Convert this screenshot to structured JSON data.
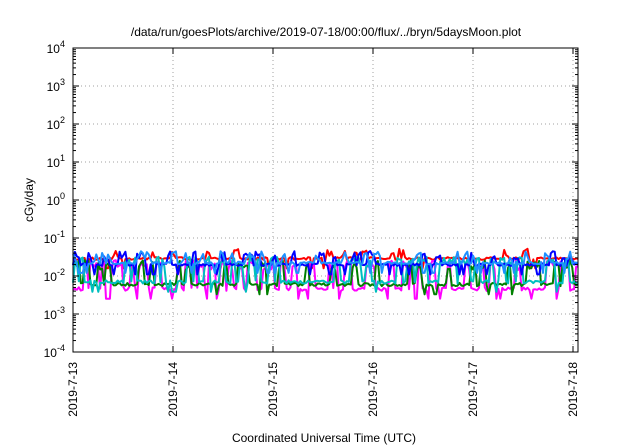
{
  "chart_data": {
    "type": "line",
    "title": "/data/run/goesPlots/archive/2019-07-18/00:00/flux/../bryn/5daysMoon.plot",
    "xlabel": "Coordinated Universal Time (UTC)",
    "ylabel": "cGy/day",
    "y_scale": "log",
    "ylim": [
      0.0001,
      10000
    ],
    "y_ticks": [
      {
        "value": 0.0001,
        "base": "10",
        "exp": "-4"
      },
      {
        "value": 0.001,
        "base": "10",
        "exp": "-3"
      },
      {
        "value": 0.01,
        "base": "10",
        "exp": "-2"
      },
      {
        "value": 0.1,
        "base": "10",
        "exp": "-1"
      },
      {
        "value": 1,
        "base": "10",
        "exp": "0"
      },
      {
        "value": 10,
        "base": "10",
        "exp": "1"
      },
      {
        "value": 100,
        "base": "10",
        "exp": "2"
      },
      {
        "value": 1000,
        "base": "10",
        "exp": "3"
      },
      {
        "value": 10000,
        "base": "10",
        "exp": "4"
      }
    ],
    "xlim": [
      0,
      5.05
    ],
    "x_ticks": [
      {
        "value": 0,
        "label": "2019-7-13"
      },
      {
        "value": 1,
        "label": "2019-7-14"
      },
      {
        "value": 2,
        "label": "2019-7-15"
      },
      {
        "value": 3,
        "label": "2019-7-16"
      },
      {
        "value": 4,
        "label": "2019-7-17"
      },
      {
        "value": 5,
        "label": "2019-7-18"
      }
    ],
    "grid": true,
    "series": [
      {
        "color": "#ff0000",
        "base": 0.029,
        "spike": 0.04,
        "spike_prob": 0.18,
        "dip_prob": 0.05,
        "noise": 0.08,
        "seed": 11
      },
      {
        "color": "#ff00ff",
        "base": 0.0046,
        "spike": 0.02,
        "spike_prob": 0.38,
        "dip_prob": 0.1,
        "noise": 0.12,
        "seed": 23
      },
      {
        "color": "#008000",
        "base": 0.006,
        "spike": 0.02,
        "spike_prob": 0.3,
        "dip_prob": 0.05,
        "noise": 0.1,
        "seed": 31
      },
      {
        "color": "#00bfbf",
        "base": 0.007,
        "spike": 0.025,
        "spike_prob": 0.3,
        "dip_prob": 0.05,
        "noise": 0.1,
        "seed": 37
      },
      {
        "color": "#0000ff",
        "base": 0.02,
        "spike": 0.035,
        "spike_prob": 0.25,
        "dip_prob": 0.15,
        "noise": 0.08,
        "seed": 43
      },
      {
        "color": "#1e90ff",
        "base": 0.022,
        "spike": 0.035,
        "spike_prob": 0.25,
        "dip_prob": 0.12,
        "noise": 0.08,
        "seed": 53
      }
    ]
  }
}
